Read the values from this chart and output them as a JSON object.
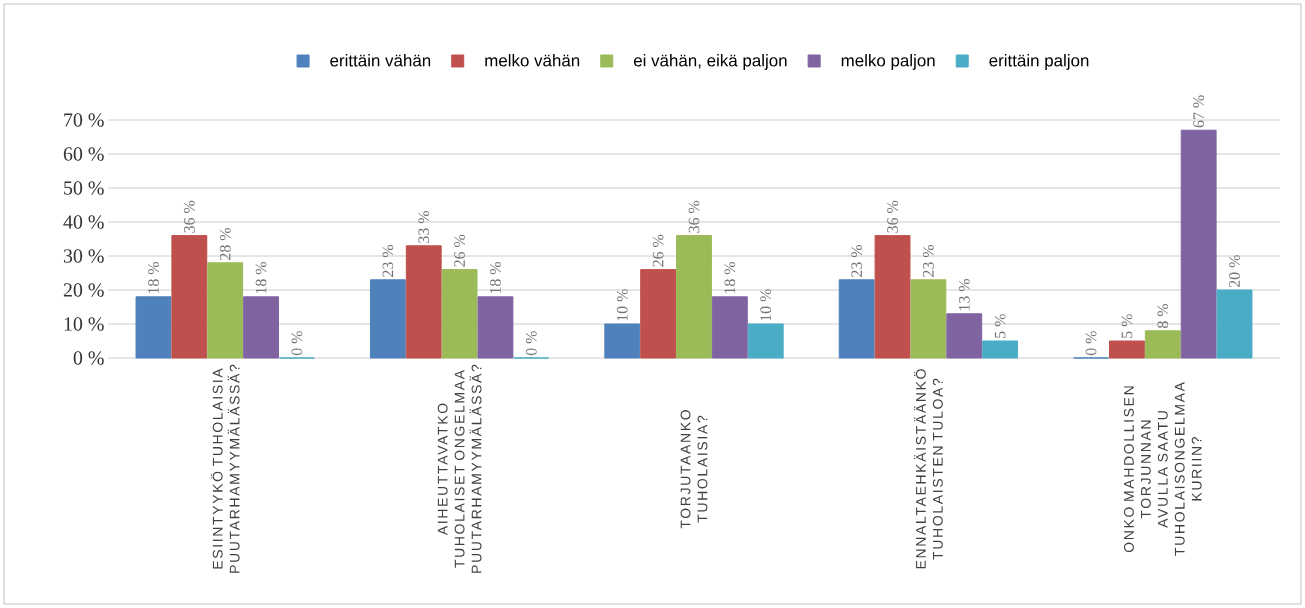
{
  "chart_data": {
    "type": "bar",
    "categories": [
      "ESIINTYYKÖ TUHOLAISIA PUUTARHAMYYMÄLÄSSÄ?",
      "AIHEUTTAVATKO TUHOLAISET ONGELMAA PUUTARHAMYYMÄLÄSSÄ?",
      "TORJUTAANKO TUHOLAISIA?",
      "ENNALTAEHKÄISTÄÄNKÖ TUHOLAISTEN TULOA?",
      "ONKO MAHDOLLISEN TORJUNNAN AVULLA SAATU TUHOLAISONGELMAA KURIIN?"
    ],
    "series": [
      {
        "name": "erittäin vähän",
        "color": "#4f81bd",
        "values": [
          18,
          23,
          10,
          23,
          0
        ],
        "value_labels": [
          "18 %",
          "23 %",
          "10 %",
          "23 %",
          "0 %"
        ]
      },
      {
        "name": "melko vähän",
        "color": "#c0504d",
        "values": [
          36,
          33,
          26,
          36,
          5
        ],
        "value_labels": [
          "36 %",
          "33 %",
          "26 %",
          "36 %",
          "5 %"
        ]
      },
      {
        "name": "ei vähän, eikä paljon",
        "color": "#9bbb59",
        "values": [
          28,
          26,
          36,
          23,
          8
        ],
        "value_labels": [
          "28 %",
          "26 %",
          "36 %",
          "23 %",
          "8 %"
        ]
      },
      {
        "name": "melko paljon",
        "color": "#8064a2",
        "values": [
          18,
          18,
          18,
          13,
          67
        ],
        "value_labels": [
          "18 %",
          "18 %",
          "18 %",
          "13 %",
          "67 %"
        ]
      },
      {
        "name": "erittäin paljon",
        "color": "#4bacc6",
        "values": [
          0,
          0,
          10,
          5,
          20
        ],
        "value_labels": [
          "0 %",
          "0 %",
          "10 %",
          "5 %",
          "20 %"
        ]
      }
    ],
    "ylim": [
      0,
      70
    ],
    "yticks": [
      {
        "value": 0,
        "label": "0 %"
      },
      {
        "value": 10,
        "label": "10 %"
      },
      {
        "value": 20,
        "label": "20 %"
      },
      {
        "value": 30,
        "label": "30 %"
      },
      {
        "value": 40,
        "label": "40 %"
      },
      {
        "value": 50,
        "label": "50 %"
      },
      {
        "value": 60,
        "label": "60 %"
      },
      {
        "value": 70,
        "label": "70 %"
      }
    ],
    "grid": "y",
    "legend": "top"
  }
}
